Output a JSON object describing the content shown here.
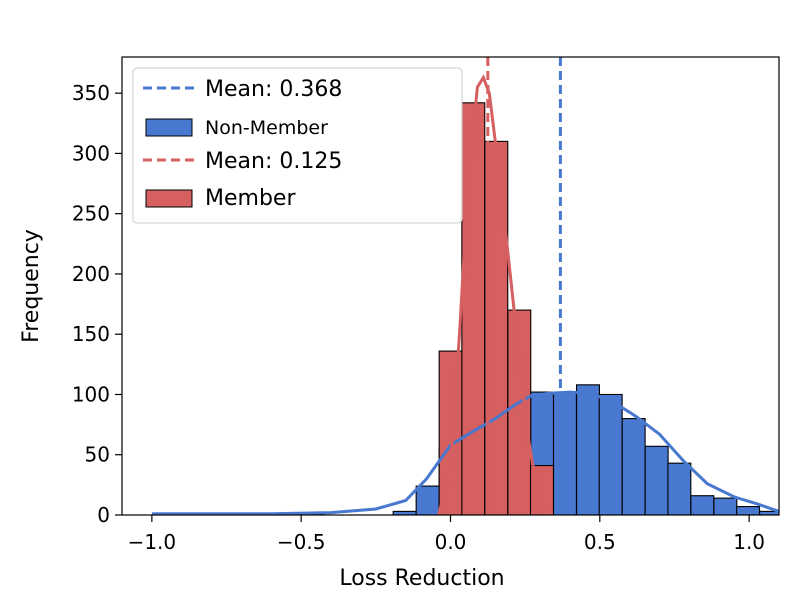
{
  "chart_data": {
    "type": "histogram",
    "xlabel": "Loss Reduction",
    "ylabel": "Frequency",
    "xlim": [
      -1.1,
      1.1
    ],
    "ylim": [
      0,
      380
    ],
    "xticks": [
      -1.0,
      -0.5,
      0.0,
      0.5,
      1.0
    ],
    "xtick_labels": [
      "−1.0",
      "−0.5",
      "0.0",
      "0.5",
      "1.0"
    ],
    "yticks": [
      0,
      50,
      100,
      150,
      200,
      250,
      300,
      350
    ],
    "ytick_labels": [
      "0",
      "50",
      "100",
      "150",
      "200",
      "250",
      "300",
      "350"
    ],
    "bin_width": 0.0767,
    "legend_position": "upper-left",
    "series": [
      {
        "name": "Non-Member",
        "color": "#4878cf",
        "bins": [
          {
            "left": -0.5,
            "count": 1
          },
          {
            "left": -0.192,
            "count": 3
          },
          {
            "left": -0.115,
            "count": 24
          },
          {
            "left": -0.038,
            "count": 55
          },
          {
            "left": 0.038,
            "count": 75
          },
          {
            "left": 0.115,
            "count": 82
          },
          {
            "left": 0.192,
            "count": 93
          },
          {
            "left": 0.268,
            "count": 102
          },
          {
            "left": 0.345,
            "count": 102
          },
          {
            "left": 0.422,
            "count": 108
          },
          {
            "left": 0.498,
            "count": 100
          },
          {
            "left": 0.575,
            "count": 80
          },
          {
            "left": 0.652,
            "count": 57
          },
          {
            "left": 0.728,
            "count": 43
          },
          {
            "left": 0.805,
            "count": 16
          },
          {
            "left": 0.882,
            "count": 14
          },
          {
            "left": 0.958,
            "count": 7
          },
          {
            "left": 1.035,
            "count": 3
          }
        ],
        "kde": [
          [
            -1.0,
            1
          ],
          [
            -0.8,
            1
          ],
          [
            -0.6,
            1
          ],
          [
            -0.4,
            2
          ],
          [
            -0.25,
            5
          ],
          [
            -0.15,
            12
          ],
          [
            -0.08,
            30
          ],
          [
            0.0,
            58
          ],
          [
            0.08,
            70
          ],
          [
            0.15,
            80
          ],
          [
            0.22,
            92
          ],
          [
            0.27,
            99
          ],
          [
            0.33,
            101
          ],
          [
            0.4,
            102
          ],
          [
            0.47,
            101
          ],
          [
            0.55,
            93
          ],
          [
            0.62,
            82
          ],
          [
            0.7,
            67
          ],
          [
            0.78,
            45
          ],
          [
            0.86,
            26
          ],
          [
            0.95,
            15
          ],
          [
            1.03,
            9
          ],
          [
            1.1,
            3
          ]
        ],
        "mean": 0.368,
        "mean_label": "Mean: 0.368"
      },
      {
        "name": "Member",
        "color": "#d65f5f",
        "bins": [
          {
            "left": -0.038,
            "count": 136
          },
          {
            "left": 0.038,
            "count": 342
          },
          {
            "left": 0.115,
            "count": 310
          },
          {
            "left": 0.192,
            "count": 170
          },
          {
            "left": 0.268,
            "count": 41
          }
        ],
        "kde": [
          [
            -0.04,
            0
          ],
          [
            0.0,
            40
          ],
          [
            0.03,
            150
          ],
          [
            0.06,
            280
          ],
          [
            0.09,
            355
          ],
          [
            0.11,
            363
          ],
          [
            0.13,
            350
          ],
          [
            0.16,
            290
          ],
          [
            0.2,
            200
          ],
          [
            0.23,
            130
          ],
          [
            0.26,
            65
          ],
          [
            0.29,
            20
          ],
          [
            0.31,
            5
          ],
          [
            0.33,
            0
          ]
        ],
        "mean": 0.125,
        "mean_label": "Mean: 0.125"
      }
    ],
    "legend": [
      {
        "kind": "line",
        "series": 0,
        "label": "Mean: 0.368"
      },
      {
        "kind": "patch",
        "series": 0,
        "label": "Non-Member"
      },
      {
        "kind": "line",
        "series": 1,
        "label": "Mean: 0.125"
      },
      {
        "kind": "patch",
        "series": 1,
        "label": "Member"
      }
    ]
  }
}
